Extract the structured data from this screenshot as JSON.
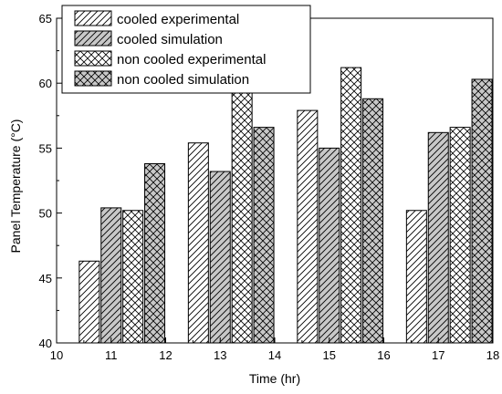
{
  "chart_data": {
    "type": "bar",
    "title": "",
    "xlabel": "Time (hr)",
    "ylabel": "Panel Temperature (°C)",
    "xlim": [
      10,
      18
    ],
    "ylim": [
      40,
      65
    ],
    "x_ticks": [
      "10",
      "11",
      "12",
      "13",
      "14",
      "15",
      "16",
      "17",
      "18"
    ],
    "y_ticks": [
      "40",
      "45",
      "50",
      "55",
      "60",
      "65"
    ],
    "grid": false,
    "legend_position": "top-left",
    "groups": [
      {
        "x": [
          10.6,
          11.0,
          11.4,
          11.8
        ]
      },
      {
        "x": [
          12.6,
          13.0,
          13.4,
          13.8
        ]
      },
      {
        "x": [
          14.6,
          15.0,
          15.4,
          15.8
        ]
      },
      {
        "x": [
          16.6,
          17.0,
          17.4,
          17.8
        ]
      }
    ],
    "series": [
      {
        "name": "cooled experimental",
        "pattern": "diagonal",
        "fill": "#ffffff",
        "values": [
          46.3,
          55.4,
          57.9,
          50.2
        ]
      },
      {
        "name": "cooled simulation",
        "pattern": "diagonal",
        "fill": "#c8c8c8",
        "values": [
          50.4,
          53.2,
          55.0,
          56.2
        ]
      },
      {
        "name": "non cooled experimental",
        "pattern": "crosshatch",
        "fill": "#ffffff",
        "values": [
          50.2,
          59.9,
          61.2,
          56.6
        ]
      },
      {
        "name": "non cooled simulation",
        "pattern": "crosshatch",
        "fill": "#c8c8c8",
        "values": [
          53.8,
          56.6,
          58.8,
          60.3
        ]
      }
    ]
  }
}
